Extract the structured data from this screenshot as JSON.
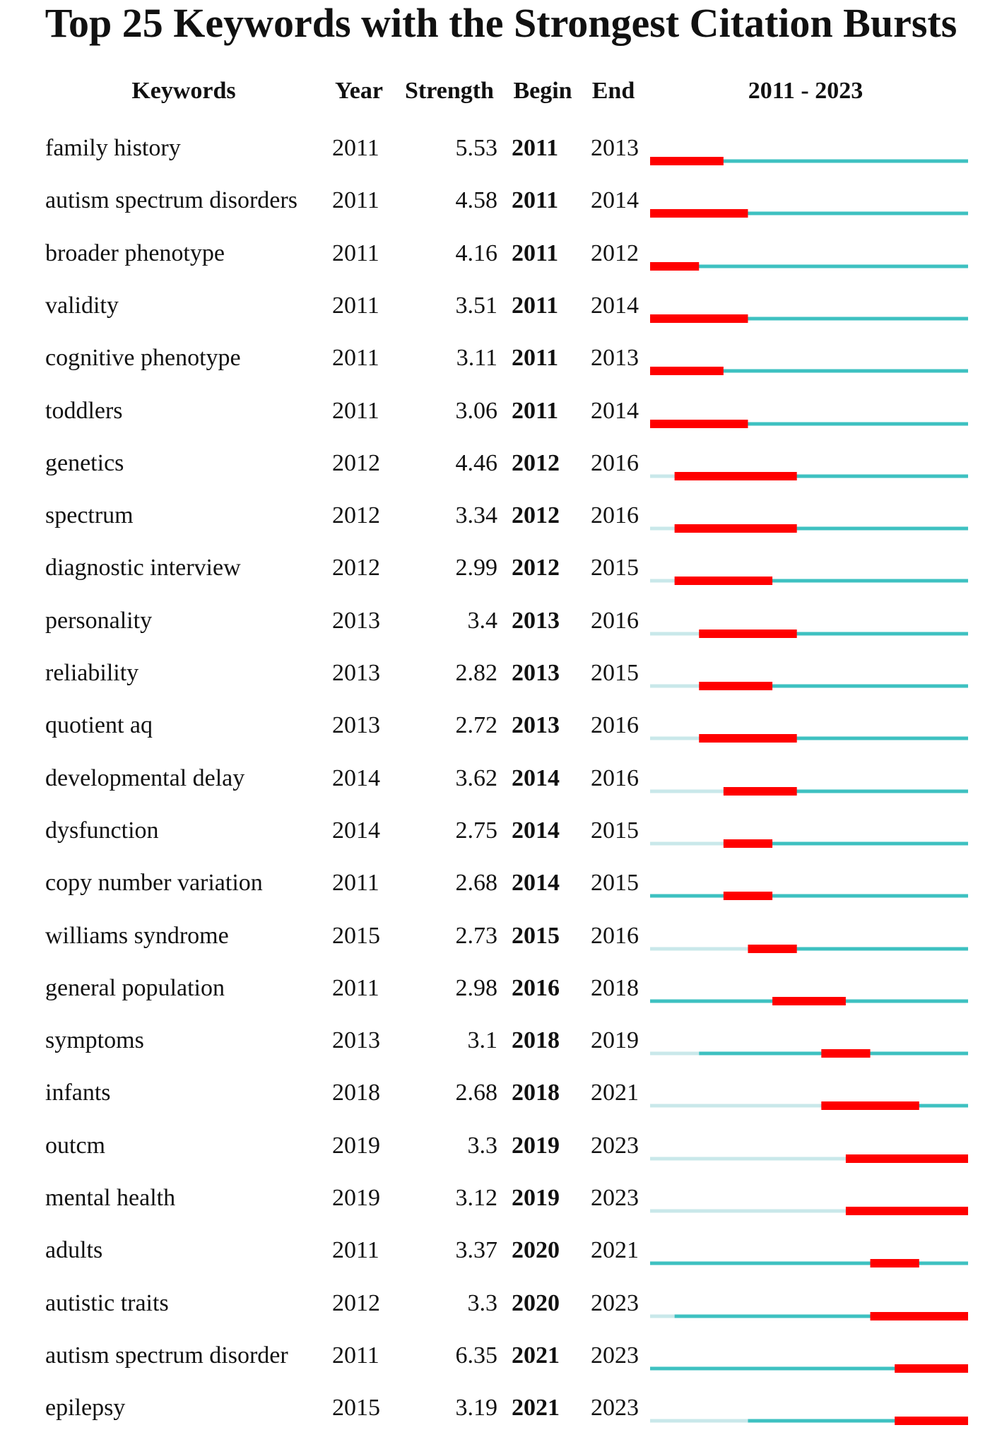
{
  "chart_data": {
    "type": "table",
    "title": "Top 25 Keywords with the Strongest Citation Bursts",
    "columns": [
      "Keywords",
      "Year",
      "Strength",
      "Begin",
      "End",
      "2011 - 2023"
    ],
    "range": [
      2011,
      2023
    ],
    "colors": {
      "burst": "#ff0000",
      "active": "#3ec1c1",
      "inactive": "#c9e8ea"
    },
    "rows": [
      {
        "keyword": "family history",
        "year": 2011,
        "strength": "5.53",
        "begin": 2011,
        "end": 2013
      },
      {
        "keyword": "autism spectrum disorders",
        "year": 2011,
        "strength": "4.58",
        "begin": 2011,
        "end": 2014
      },
      {
        "keyword": "broader phenotype",
        "year": 2011,
        "strength": "4.16",
        "begin": 2011,
        "end": 2012
      },
      {
        "keyword": "validity",
        "year": 2011,
        "strength": "3.51",
        "begin": 2011,
        "end": 2014
      },
      {
        "keyword": "cognitive phenotype",
        "year": 2011,
        "strength": "3.11",
        "begin": 2011,
        "end": 2013
      },
      {
        "keyword": "toddlers",
        "year": 2011,
        "strength": "3.06",
        "begin": 2011,
        "end": 2014
      },
      {
        "keyword": "genetics",
        "year": 2012,
        "strength": "4.46",
        "begin": 2012,
        "end": 2016
      },
      {
        "keyword": "spectrum",
        "year": 2012,
        "strength": "3.34",
        "begin": 2012,
        "end": 2016
      },
      {
        "keyword": "diagnostic interview",
        "year": 2012,
        "strength": "2.99",
        "begin": 2012,
        "end": 2015
      },
      {
        "keyword": "personality",
        "year": 2013,
        "strength": "3.4",
        "begin": 2013,
        "end": 2016
      },
      {
        "keyword": "reliability",
        "year": 2013,
        "strength": "2.82",
        "begin": 2013,
        "end": 2015
      },
      {
        "keyword": "quotient aq",
        "year": 2013,
        "strength": "2.72",
        "begin": 2013,
        "end": 2016
      },
      {
        "keyword": "developmental delay",
        "year": 2014,
        "strength": "3.62",
        "begin": 2014,
        "end": 2016
      },
      {
        "keyword": "dysfunction",
        "year": 2014,
        "strength": "2.75",
        "begin": 2014,
        "end": 2015
      },
      {
        "keyword": "copy number variation",
        "year": 2011,
        "strength": "2.68",
        "begin": 2014,
        "end": 2015
      },
      {
        "keyword": "williams syndrome",
        "year": 2015,
        "strength": "2.73",
        "begin": 2015,
        "end": 2016
      },
      {
        "keyword": "general population",
        "year": 2011,
        "strength": "2.98",
        "begin": 2016,
        "end": 2018
      },
      {
        "keyword": "symptoms",
        "year": 2013,
        "strength": "3.1",
        "begin": 2018,
        "end": 2019
      },
      {
        "keyword": "infants",
        "year": 2018,
        "strength": "2.68",
        "begin": 2018,
        "end": 2021
      },
      {
        "keyword": "outcm",
        "year": 2019,
        "strength": "3.3",
        "begin": 2019,
        "end": 2023
      },
      {
        "keyword": "mental health",
        "year": 2019,
        "strength": "3.12",
        "begin": 2019,
        "end": 2023
      },
      {
        "keyword": "adults",
        "year": 2011,
        "strength": "3.37",
        "begin": 2020,
        "end": 2021
      },
      {
        "keyword": "autistic traits",
        "year": 2012,
        "strength": "3.3",
        "begin": 2020,
        "end": 2023
      },
      {
        "keyword": "autism spectrum disorder",
        "year": 2011,
        "strength": "6.35",
        "begin": 2021,
        "end": 2023
      },
      {
        "keyword": "epilepsy",
        "year": 2015,
        "strength": "3.19",
        "begin": 2021,
        "end": 2023
      }
    ]
  }
}
